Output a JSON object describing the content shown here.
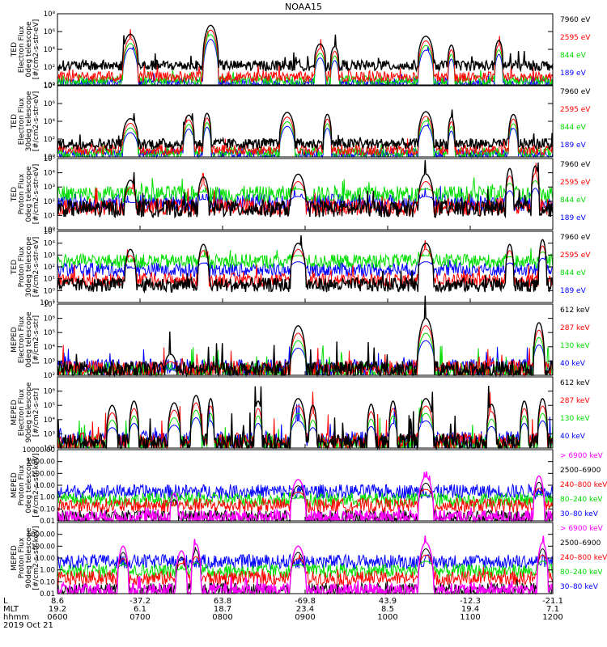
{
  "title": "NOAA15",
  "colors": {
    "blue": "#0000ff",
    "red": "#ff0000",
    "green": "#00dd00",
    "black": "#000000",
    "magenta": "#ff00ff"
  },
  "chart_data": {
    "type": "line",
    "x_labels": {
      "rows": [
        {
          "name": "L",
          "values": [
            "8.6",
            "-37.2",
            "63.8",
            "-69.8",
            "43.9",
            "-12.3",
            "-21.1"
          ]
        },
        {
          "name": "MLT",
          "values": [
            "19.2",
            "6.1",
            "18.7",
            "23.4",
            "8.5",
            "19.4",
            "7.1"
          ]
        },
        {
          "name": "hhmm",
          "values": [
            "0600",
            "0700",
            "0800",
            "0900",
            "1000",
            "1100",
            "1200"
          ]
        }
      ],
      "date": "2019 Oct 21"
    },
    "panels": [
      {
        "id": "ted-electron-0deg",
        "ylabel": [
          "TED",
          "Electron Flux",
          "0deg telescope",
          "[#/cm2-s-str-eV]"
        ],
        "yscale": "log",
        "ylim": [
          1,
          100000000
        ],
        "yticks": [
          {
            "v": 1,
            "t": "10⁰"
          },
          {
            "v": 100,
            "t": "10²"
          },
          {
            "v": 10000,
            "t": "10⁴"
          },
          {
            "v": 1000000,
            "t": "10⁶"
          },
          {
            "v": 100000000,
            "t": "10⁸"
          }
        ],
        "legend": [
          {
            "label": "7960 eV",
            "color": "#000000"
          },
          {
            "label": "2595 eV",
            "color": "#ff0000"
          },
          {
            "label": "844 eV",
            "color": "#00dd00"
          },
          {
            "label": "189 eV",
            "color": "#0000ff"
          }
        ],
        "base": [
          150,
          8,
          3,
          1.5
        ],
        "peaks": [
          [
            100,
            500000,
            11
          ],
          [
            210,
            5000000,
            11
          ],
          [
            360,
            40000,
            8
          ],
          [
            380,
            20000,
            6
          ],
          [
            505,
            300000,
            11
          ],
          [
            540,
            30000,
            5
          ],
          [
            605,
            100000,
            6
          ]
        ],
        "scatter": [
          120,
          60,
          30,
          20
        ]
      },
      {
        "id": "ted-electron-30deg",
        "ylabel": [
          "TED",
          "Electron Flux",
          "30deg telescope",
          "[#/cm2-s-str-eV]"
        ],
        "yscale": "log",
        "ylim": [
          1,
          100000000
        ],
        "yticks": [
          {
            "v": 1,
            "t": "10⁰"
          },
          {
            "v": 100,
            "t": "10²"
          },
          {
            "v": 10000,
            "t": "10⁴"
          },
          {
            "v": 1000000,
            "t": "10⁶"
          },
          {
            "v": 100000000,
            "t": "10⁸"
          }
        ],
        "legend": [
          {
            "label": "7960 eV",
            "color": "#000000"
          },
          {
            "label": "2595 eV",
            "color": "#ff0000"
          },
          {
            "label": "844 eV",
            "color": "#00dd00"
          },
          {
            "label": "189 eV",
            "color": "#0000ff"
          }
        ],
        "base": [
          30,
          6,
          3,
          2
        ],
        "peaks": [
          [
            100,
            20000,
            11
          ],
          [
            180,
            50000,
            8
          ],
          [
            205,
            80000,
            6
          ],
          [
            315,
            100000,
            11
          ],
          [
            370,
            60000,
            6
          ],
          [
            505,
            120000,
            11
          ],
          [
            540,
            30000,
            5
          ],
          [
            625,
            60000,
            7
          ]
        ],
        "scatter": [
          40,
          30,
          20,
          10
        ]
      },
      {
        "id": "ted-proton-0deg",
        "ylabel": [
          "TED",
          "Proton Flux",
          "0deg telescope",
          "[#/cm2-s-str-eV]"
        ],
        "yscale": "log",
        "ylim": [
          1,
          100000
        ],
        "yticks": [
          {
            "v": 1,
            "t": "10⁰"
          },
          {
            "v": 10,
            "t": "10¹"
          },
          {
            "v": 100,
            "t": "10²"
          },
          {
            "v": 1000,
            "t": "10³"
          },
          {
            "v": 10000,
            "t": "10⁴"
          },
          {
            "v": 100000,
            "t": "10⁵"
          }
        ],
        "legend": [
          {
            "label": "7960 eV",
            "color": "#000000"
          },
          {
            "label": "2595 eV",
            "color": "#ff0000"
          },
          {
            "label": "844 eV",
            "color": "#00dd00"
          },
          {
            "label": "189 eV",
            "color": "#0000ff"
          }
        ],
        "base": [
          30,
          40,
          300,
          80
        ],
        "peaks": [
          [
            100,
            3000,
            8
          ],
          [
            200,
            5000,
            8
          ],
          [
            330,
            8000,
            11
          ],
          [
            505,
            8000,
            11
          ],
          [
            620,
            20000,
            6
          ],
          [
            655,
            30000,
            6
          ]
        ],
        "scatter": [
          50,
          30,
          20,
          20
        ]
      },
      {
        "id": "ted-proton-30deg",
        "ylabel": [
          "TED",
          "Proton Flux",
          "30deg telescope",
          "[#/cm2-s-str-eV]"
        ],
        "yscale": "log",
        "ylim": [
          0.1,
          100000
        ],
        "yticks": [
          {
            "v": 0.1,
            "t": "10⁻¹"
          },
          {
            "v": 1,
            "t": "10⁰"
          },
          {
            "v": 10,
            "t": "10¹"
          },
          {
            "v": 100,
            "t": "10²"
          },
          {
            "v": 1000,
            "t": "10³"
          },
          {
            "v": 10000,
            "t": "10⁴"
          },
          {
            "v": 100000,
            "t": "10⁵"
          }
        ],
        "legend": [
          {
            "label": "7960 eV",
            "color": "#000000"
          },
          {
            "label": "2595 eV",
            "color": "#ff0000"
          },
          {
            "label": "844 eV",
            "color": "#00dd00"
          },
          {
            "label": "189 eV",
            "color": "#0000ff"
          }
        ],
        "base": [
          3,
          8,
          300,
          60
        ],
        "peaks": [
          [
            100,
            3000,
            8
          ],
          [
            200,
            8000,
            8
          ],
          [
            330,
            10000,
            11
          ],
          [
            505,
            10000,
            11
          ],
          [
            620,
            8000,
            6
          ],
          [
            665,
            20000,
            6
          ]
        ],
        "scatter": [
          40,
          30,
          20,
          15
        ]
      },
      {
        "id": "meped-electron-0deg",
        "ylabel": [
          "MEPED",
          "Electron Flux",
          "0deg telescope",
          "[#/cm2-s-str]"
        ],
        "yscale": "log",
        "ylim": [
          100,
          10000000
        ],
        "yticks": [
          {
            "v": 100,
            "t": "10²"
          },
          {
            "v": 1000,
            "t": "10³"
          },
          {
            "v": 10000,
            "t": "10⁴"
          },
          {
            "v": 100000,
            "t": "10⁵"
          },
          {
            "v": 1000000,
            "t": "10⁶"
          },
          {
            "v": 10000000,
            "t": "10⁷"
          }
        ],
        "legend": [
          {
            "label": "612 keV",
            "color": "#000000"
          },
          {
            "label": "287 keV",
            "color": "#ff0000"
          },
          {
            "label": "130 keV",
            "color": "#00dd00"
          },
          {
            "label": "40 keV",
            "color": "#0000ff"
          }
        ],
        "base": [
          250,
          280,
          200,
          350
        ],
        "peaks": [
          [
            155,
            3000,
            8
          ],
          [
            330,
            300000,
            11
          ],
          [
            505,
            1000000,
            12
          ],
          [
            660,
            500000,
            8
          ]
        ],
        "scatter": [
          200,
          100,
          80,
          40
        ]
      },
      {
        "id": "meped-electron-90deg",
        "ylabel": [
          "MEPED",
          "Electron Flux",
          "90deg telescope",
          "[#/cm2-s-str]"
        ],
        "yscale": "log",
        "ylim": [
          100,
          10000000
        ],
        "yticks": [
          {
            "v": 100,
            "t": "10²"
          },
          {
            "v": 1000,
            "t": "10³"
          },
          {
            "v": 10000,
            "t": "10⁴"
          },
          {
            "v": 100000,
            "t": "10⁵"
          },
          {
            "v": 1000000,
            "t": "10⁶"
          }
        ],
        "legend": [
          {
            "label": "612 keV",
            "color": "#000000"
          },
          {
            "label": "287 keV",
            "color": "#ff0000"
          },
          {
            "label": "130 keV",
            "color": "#00dd00"
          },
          {
            "label": "40 keV",
            "color": "#0000ff"
          }
        ],
        "base": [
          250,
          300,
          200,
          400
        ],
        "peaks": [
          [
            75,
            100000,
            8
          ],
          [
            105,
            200000,
            7
          ],
          [
            160,
            150000,
            9
          ],
          [
            190,
            500000,
            8
          ],
          [
            210,
            300000,
            5
          ],
          [
            275,
            200000,
            6
          ],
          [
            330,
            300000,
            11
          ],
          [
            350,
            100000,
            6
          ],
          [
            430,
            120000,
            6
          ],
          [
            460,
            200000,
            6
          ],
          [
            505,
            300000,
            11
          ],
          [
            595,
            120000,
            7
          ],
          [
            640,
            200000,
            6
          ],
          [
            665,
            300000,
            7
          ]
        ],
        "scatter": [
          300,
          150,
          100,
          80
        ]
      },
      {
        "id": "meped-proton-0deg",
        "ylabel": [
          "MEPED",
          "Proton Flux",
          "0deg telescope",
          "[#/cm2-s-str-keV]"
        ],
        "yscale": "log",
        "ylim": [
          0.01,
          10000
        ],
        "yticks": [
          {
            "v": 0.01,
            "t": "0.01"
          },
          {
            "v": 0.1,
            "t": "0.10"
          },
          {
            "v": 1,
            "t": "1.00"
          },
          {
            "v": 10,
            "t": "10.00"
          },
          {
            "v": 100,
            "t": "100.00"
          },
          {
            "v": 1000,
            "t": "1000.00"
          },
          {
            "v": 10000,
            "t": "10000.00"
          }
        ],
        "legend": [
          {
            "label": "> 6900 keV",
            "color": "#ff00ff"
          },
          {
            "label": "2500–6900",
            "color": "#000000"
          },
          {
            "label": "240–800 keV",
            "color": "#ff0000"
          },
          {
            "label": "80–240 keV",
            "color": "#00dd00"
          },
          {
            "label": "30–80 keV",
            "color": "#0000ff"
          }
        ],
        "base": [
          0.02,
          0.02,
          0.2,
          0.6,
          3
        ],
        "peaks": [
          [
            160,
            2,
            6
          ],
          [
            330,
            30,
            11
          ],
          [
            505,
            50,
            11
          ],
          [
            660,
            60,
            8
          ]
        ],
        "scatter": [
          15,
          8,
          10,
          6,
          3
        ]
      },
      {
        "id": "meped-proton-90deg",
        "ylabel": [
          "MEPED",
          "Proton Flux",
          "90deg telescope",
          "[#/cm2-s-str-keV]"
        ],
        "yscale": "log",
        "ylim": [
          0.01,
          10000
        ],
        "yticks": [
          {
            "v": 0.01,
            "t": "0.01"
          },
          {
            "v": 0.1,
            "t": "0.10"
          },
          {
            "v": 1,
            "t": "1.00"
          },
          {
            "v": 10,
            "t": "10.00"
          },
          {
            "v": 100,
            "t": "100.00"
          },
          {
            "v": 1000,
            "t": "1000.00"
          }
        ],
        "legend": [
          {
            "label": "> 6900 keV",
            "color": "#ff00ff"
          },
          {
            "label": "2500–6900",
            "color": "#000000"
          },
          {
            "label": "240–800 keV",
            "color": "#ff0000"
          },
          {
            "label": "80–240 keV",
            "color": "#00dd00"
          },
          {
            "label": "30–80 keV",
            "color": "#0000ff"
          }
        ],
        "base": [
          0.02,
          0.02,
          0.2,
          0.8,
          5
        ],
        "peaks": [
          [
            90,
            100,
            8
          ],
          [
            170,
            40,
            8
          ],
          [
            190,
            150,
            7
          ],
          [
            330,
            100,
            11
          ],
          [
            505,
            200,
            11
          ],
          [
            665,
            200,
            8
          ]
        ],
        "scatter": [
          20,
          10,
          12,
          8,
          4
        ]
      }
    ]
  }
}
